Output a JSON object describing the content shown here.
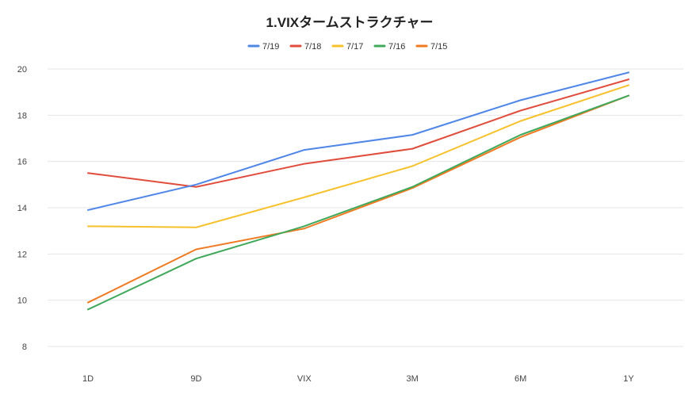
{
  "chart_data": {
    "type": "line",
    "title": "1.VIXタームストラクチャー",
    "xlabel": "",
    "ylabel": "",
    "categories": [
      "1D",
      "9D",
      "VIX",
      "3M",
      "6M",
      "1Y"
    ],
    "ylim": [
      8,
      20
    ],
    "yticks": [
      "8",
      "10",
      "12",
      "14",
      "16",
      "18",
      "20"
    ],
    "grid": true,
    "legend_position": "top",
    "series": [
      {
        "name": "7/19",
        "color": "#4f86e8",
        "values": [
          13.9,
          15.0,
          16.5,
          17.15,
          18.65,
          19.85
        ]
      },
      {
        "name": "7/18",
        "color": "#e04d3d",
        "values": [
          15.5,
          14.9,
          15.9,
          16.55,
          18.2,
          19.55
        ]
      },
      {
        "name": "7/17",
        "color": "#f6c12b",
        "values": [
          13.2,
          13.15,
          14.45,
          15.8,
          17.75,
          19.3
        ]
      },
      {
        "name": "7/16",
        "color": "#3fa85b",
        "values": [
          9.6,
          11.8,
          13.2,
          14.9,
          17.15,
          18.85
        ]
      },
      {
        "name": "7/15",
        "color": "#f07a22",
        "values": [
          9.9,
          12.2,
          13.1,
          14.85,
          17.05,
          18.85
        ]
      }
    ]
  }
}
